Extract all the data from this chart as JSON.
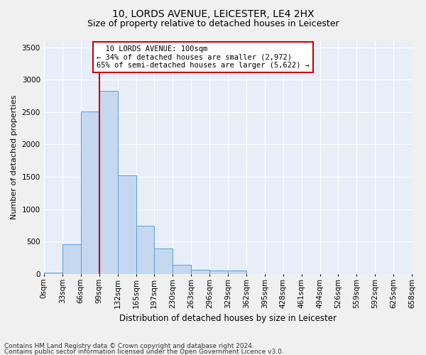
{
  "title1": "10, LORDS AVENUE, LEICESTER, LE4 2HX",
  "title2": "Size of property relative to detached houses in Leicester",
  "xlabel": "Distribution of detached houses by size in Leicester",
  "ylabel": "Number of detached properties",
  "footer1": "Contains HM Land Registry data © Crown copyright and database right 2024.",
  "footer2": "Contains public sector information licensed under the Open Government Licence v3.0.",
  "annotation_line1": "10 LORDS AVENUE: 100sqm",
  "annotation_line2": "← 34% of detached houses are smaller (2,972)",
  "annotation_line3": "65% of semi-detached houses are larger (5,622) →",
  "bin_edges": [
    0,
    33,
    66,
    99,
    132,
    165,
    197,
    230,
    263,
    296,
    329,
    362,
    395,
    428,
    461,
    494,
    526,
    559,
    592,
    625,
    658
  ],
  "bar_values": [
    20,
    465,
    2510,
    2830,
    1520,
    750,
    390,
    140,
    70,
    55,
    55,
    0,
    0,
    0,
    0,
    0,
    0,
    0,
    0,
    0
  ],
  "bar_color": "#c5d8f0",
  "bar_edge_color": "#5a9fd4",
  "vline_color": "#cc0000",
  "vline_x": 99,
  "annotation_box_color": "#cc0000",
  "ylim": [
    0,
    3600
  ],
  "yticks": [
    0,
    500,
    1000,
    1500,
    2000,
    2500,
    3000,
    3500
  ],
  "bg_color": "#e8eef8",
  "grid_color": "#ffffff",
  "fig_bg_color": "#f0f0f0",
  "title1_fontsize": 10,
  "title2_fontsize": 9,
  "xlabel_fontsize": 8.5,
  "ylabel_fontsize": 8,
  "tick_fontsize": 7.5,
  "annotation_fontsize": 7.5,
  "footer_fontsize": 6.5
}
